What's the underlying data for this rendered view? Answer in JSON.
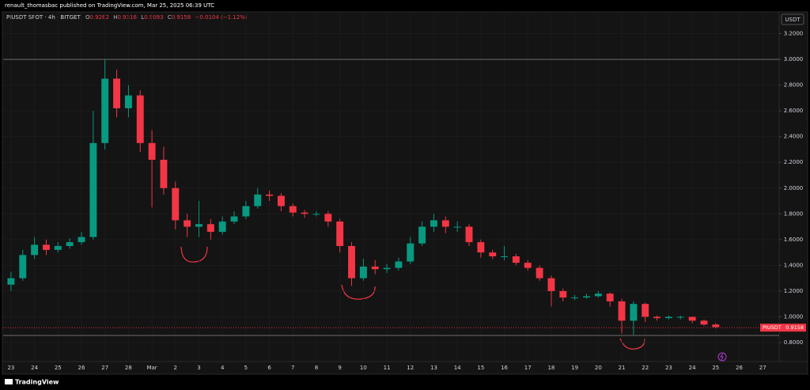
{
  "chart_data": {
    "type": "candlestick",
    "source": "renault_thomasbac published on TradingView.com, Mar 25, 2025 06:39 UTC",
    "symbol": "PIUSDT SPOT · 4h · BITGET",
    "header": {
      "o_label": "O",
      "o": 0.9262,
      "h_label": "H",
      "h": 0.9316,
      "l_label": "L",
      "l": 0.9093,
      "c_label": "C",
      "c": 0.9158,
      "change": "−0.0104 (−1.12%)"
    },
    "currency": "USDT",
    "price_tag": {
      "name": "PIUSDT",
      "value": 0.9158
    },
    "levels": [
      3.0,
      0.855
    ],
    "brand": "TradingView",
    "up_color": "#089981",
    "down_color": "#f23645",
    "x": [
      0,
      0.5,
      1,
      1.5,
      2,
      2.5,
      3,
      3.5,
      4,
      4.5,
      5,
      5.5,
      6,
      6.5,
      7,
      7.5,
      8,
      8.5,
      9,
      9.5,
      10,
      10.5,
      11,
      11.5,
      12,
      12.5,
      13,
      13.5,
      14,
      14.5,
      15,
      15.5,
      16,
      16.5,
      17,
      17.5,
      18,
      18.5,
      19,
      19.5,
      20,
      20.5,
      21,
      21.5,
      22,
      22.5,
      23,
      23.5,
      24,
      24.5,
      25,
      25.5,
      26,
      26.5,
      27,
      27.5,
      28,
      28.5,
      29,
      29.5,
      30
    ],
    "open": [
      1.25,
      1.3,
      1.48,
      1.56,
      1.52,
      1.55,
      1.58,
      1.62,
      2.35,
      2.85,
      2.62,
      2.72,
      2.35,
      2.22,
      2.0,
      1.75,
      1.7,
      1.72,
      1.66,
      1.74,
      1.78,
      1.86,
      1.95,
      1.94,
      1.86,
      1.81,
      1.8,
      1.8,
      1.74,
      1.55,
      1.3,
      1.39,
      1.37,
      1.38,
      1.43,
      1.57,
      1.7,
      1.75,
      1.7,
      1.7,
      1.58,
      1.5,
      1.47,
      1.47,
      1.42,
      1.38,
      1.3,
      1.2,
      1.15,
      1.15,
      1.16,
      1.18,
      1.12,
      0.97,
      1.1,
      1.0,
      0.99,
      1.0,
      1.0,
      0.97,
      0.94
    ],
    "high": [
      1.35,
      1.52,
      1.62,
      1.6,
      1.58,
      1.61,
      1.66,
      2.6,
      3.0,
      2.92,
      2.8,
      2.76,
      2.45,
      2.32,
      2.05,
      1.8,
      1.9,
      1.76,
      1.78,
      1.82,
      1.9,
      2.0,
      1.98,
      1.96,
      1.88,
      1.83,
      1.82,
      1.82,
      1.76,
      1.58,
      1.45,
      1.44,
      1.41,
      1.46,
      1.62,
      1.74,
      1.8,
      1.78,
      1.74,
      1.72,
      1.6,
      1.52,
      1.55,
      1.49,
      1.44,
      1.4,
      1.32,
      1.22,
      1.17,
      1.18,
      1.2,
      1.19,
      1.14,
      1.12,
      1.11,
      1.01,
      1.01,
      1.01,
      1.0,
      0.98,
      0.95
    ],
    "low": [
      1.2,
      1.28,
      1.45,
      1.48,
      1.5,
      1.53,
      1.56,
      1.6,
      2.3,
      2.55,
      2.55,
      2.28,
      1.85,
      1.95,
      1.68,
      1.62,
      1.62,
      1.6,
      1.64,
      1.72,
      1.76,
      1.84,
      1.9,
      1.82,
      1.78,
      1.77,
      1.78,
      1.7,
      1.5,
      1.24,
      1.28,
      1.33,
      1.34,
      1.36,
      1.41,
      1.55,
      1.66,
      1.65,
      1.66,
      1.55,
      1.46,
      1.45,
      1.44,
      1.4,
      1.36,
      1.28,
      1.08,
      1.12,
      1.13,
      1.14,
      1.15,
      1.08,
      0.87,
      0.86,
      0.96,
      0.97,
      0.98,
      0.98,
      0.95,
      0.93,
      0.91
    ],
    "close": [
      1.3,
      1.48,
      1.56,
      1.52,
      1.55,
      1.58,
      1.62,
      2.35,
      2.85,
      2.62,
      2.72,
      2.35,
      2.22,
      2.0,
      1.75,
      1.7,
      1.72,
      1.66,
      1.74,
      1.78,
      1.86,
      1.95,
      1.94,
      1.86,
      1.81,
      1.8,
      1.8,
      1.74,
      1.55,
      1.3,
      1.39,
      1.37,
      1.38,
      1.43,
      1.57,
      1.7,
      1.75,
      1.7,
      1.7,
      1.58,
      1.5,
      1.47,
      1.47,
      1.42,
      1.38,
      1.3,
      1.2,
      1.15,
      1.15,
      1.16,
      1.18,
      1.12,
      0.97,
      1.1,
      1.0,
      0.99,
      1.0,
      1.0,
      0.97,
      0.94,
      0.92
    ],
    "xlim": [
      -0.3,
      32.7
    ],
    "xticks": [
      {
        "value": 0,
        "label": "23"
      },
      {
        "value": 1,
        "label": "24"
      },
      {
        "value": 2,
        "label": "25"
      },
      {
        "value": 3,
        "label": "26"
      },
      {
        "value": 4,
        "label": "27"
      },
      {
        "value": 5,
        "label": "28"
      },
      {
        "value": 6,
        "label": "Mar"
      },
      {
        "value": 7,
        "label": "2"
      },
      {
        "value": 8,
        "label": "3"
      },
      {
        "value": 9,
        "label": "4"
      },
      {
        "value": 10,
        "label": "5"
      },
      {
        "value": 11,
        "label": "6"
      },
      {
        "value": 12,
        "label": "7"
      },
      {
        "value": 13,
        "label": "8"
      },
      {
        "value": 14,
        "label": "9"
      },
      {
        "value": 15,
        "label": "10"
      },
      {
        "value": 16,
        "label": "11"
      },
      {
        "value": 17,
        "label": "12"
      },
      {
        "value": 18,
        "label": "13"
      },
      {
        "value": 19,
        "label": "14"
      },
      {
        "value": 20,
        "label": "15"
      },
      {
        "value": 21,
        "label": "16"
      },
      {
        "value": 22,
        "label": "17"
      },
      {
        "value": 23,
        "label": "18"
      },
      {
        "value": 24,
        "label": "19"
      },
      {
        "value": 25,
        "label": "20"
      },
      {
        "value": 26,
        "label": "21"
      },
      {
        "value": 27,
        "label": "22"
      },
      {
        "value": 28,
        "label": "23"
      },
      {
        "value": 29,
        "label": "24"
      },
      {
        "value": 30,
        "label": "25"
      },
      {
        "value": 31,
        "label": "26"
      },
      {
        "value": 32,
        "label": "27"
      }
    ],
    "ylim": [
      0.665,
      3.369
    ],
    "yticks": [
      {
        "value": 0.8,
        "label": "0.8000"
      },
      {
        "value": 1.0,
        "label": "1.0000"
      },
      {
        "value": 1.2,
        "label": "1.2000"
      },
      {
        "value": 1.4,
        "label": "1.4000"
      },
      {
        "value": 1.6,
        "label": "1.6000"
      },
      {
        "value": 1.8,
        "label": "1.8000"
      },
      {
        "value": 2.0,
        "label": "2.0000"
      },
      {
        "value": 2.2,
        "label": "2.2000"
      },
      {
        "value": 2.4,
        "label": "2.4000"
      },
      {
        "value": 2.6,
        "label": "2.6000"
      },
      {
        "value": 2.8,
        "label": "2.8000"
      },
      {
        "value": 3.0,
        "label": "3.0000"
      },
      {
        "value": 3.2,
        "label": "3.2000"
      }
    ],
    "grid": true
  }
}
